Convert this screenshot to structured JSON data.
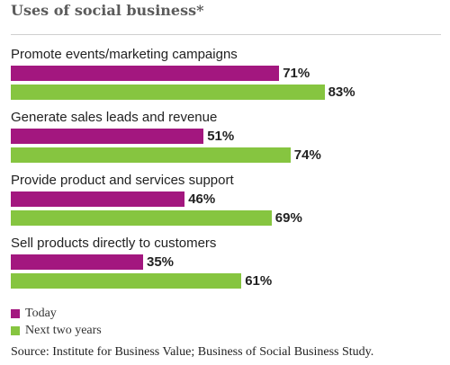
{
  "chart_data": {
    "type": "bar",
    "orientation": "horizontal",
    "title": "Uses of social business*",
    "categories": [
      "Promote events/marketing campaigns",
      "Generate sales leads and revenue",
      "Provide product and services support",
      "Sell products directly to customers"
    ],
    "series": [
      {
        "name": "Today",
        "color": "#a3177f",
        "values": [
          71,
          51,
          46,
          35
        ]
      },
      {
        "name": "Next two years",
        "color": "#86c540",
        "values": [
          83,
          74,
          69,
          61
        ]
      }
    ],
    "value_suffix": "%",
    "xlim": [
      0,
      100
    ],
    "grid": false,
    "legend_position": "bottom-left",
    "source": "Source: Institute for Business Value; Business of Social Business Study."
  }
}
